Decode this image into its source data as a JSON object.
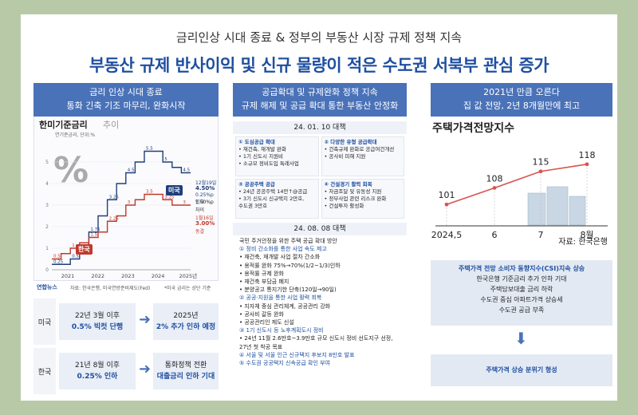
{
  "header": {
    "subtitle": "금리인상 시대 종료 & 정부의 부동산 시장 규제 정책 지속",
    "title": "부동산 규제 반사이익 및 신규 물량이 적은 수도권 서북부 관심 증가"
  },
  "col1": {
    "head_line1": "금리 인상 시대 종료",
    "head_line2": "통화 긴축 기조 마무리, 완화시작",
    "chart_title": "한미기준금리",
    "chart_title_suffix": "추이",
    "unit": "연기준금리, 단위:%",
    "percent_glyph": "%",
    "tag_us": "미국",
    "tag_kr": "한국",
    "us_note1": "12월19일",
    "us_note2": "4.50%",
    "us_note3": "0.25%p 인하",
    "us_note4": "1.50%p",
    "us_note5": "차이",
    "kr_note1": "1월16일",
    "kr_note2": "3.00%",
    "kr_note3": "동결",
    "source": "자료: 한국은행, 미국연방준비제도(Fed)",
    "source_note": "*미국 금리는 상단 기준",
    "logo": "연합뉴스",
    "rows": [
      {
        "label": "미국",
        "left1": "22년 3월 이후",
        "left2": "0.5% 빅컷 단행",
        "right1": "2025년",
        "right2": "2% 추가 인하 예정"
      },
      {
        "label": "한국",
        "left1": "21년 8월 이후",
        "left2": "0.25% 인하",
        "right1": "통화정책 전환",
        "right2": "대출금리 인하 기대"
      }
    ]
  },
  "chart_data": [
    {
      "type": "line",
      "title": "한미기준금리 추이",
      "ylabel": "연기준금리, 단위:%",
      "x_ticks": [
        "2021",
        "2022",
        "2023",
        "2024",
        "2025년"
      ],
      "ylim": [
        0,
        6
      ],
      "series": [
        {
          "name": "미국",
          "values": [
            0.25,
            0.25,
            0.5,
            1.0,
            1.75,
            2.5,
            3.25,
            4.0,
            4.5,
            5.0,
            5.5,
            5.5,
            5.0,
            4.75,
            4.5
          ]
        },
        {
          "name": "한국",
          "values": [
            0.5,
            0.75,
            1.0,
            1.25,
            1.5,
            1.75,
            2.25,
            2.5,
            3.0,
            3.25,
            3.5,
            3.5,
            3.25,
            3.0,
            3.0
          ]
        }
      ],
      "y_ticks": [
        0,
        1,
        2,
        3,
        4,
        5
      ]
    },
    {
      "type": "line",
      "title": "주택가격전망지수",
      "categories": [
        "2024,5",
        "6",
        "7",
        "8월"
      ],
      "values": [
        101,
        108,
        115,
        118
      ],
      "ylim": [
        95,
        122
      ]
    }
  ],
  "col2": {
    "head_line1": "공급확대 및 규제완화 정책 지속",
    "head_line2": "규제 해제 및 공급 확대 통한 부동산 안정화",
    "date1": "24. 01. 10 대책",
    "cells": [
      {
        "h": "① 도심공급 확대",
        "body": "• 재건축, 재개발 완화\n• 1기 신도시 지원비\n• 소규모 정비도입 특례사업"
      },
      {
        "h": "② 다양한 유형 공급확대",
        "body": "• 건축규제 완화로 공급여건개선\n• 공사비 피해 지원"
      },
      {
        "h": "③ 공공주택 공급",
        "body": "• 24년 공공주택 14만↑@공급\n• 3기 신도시 신규택지 2만호,\n  수도권 3만호"
      },
      {
        "h": "④ 건설경기 활력 회복",
        "body": "• 자금조달 및 유동성 지원\n• 정부사업 관련 리스크 완화\n• 건설투자 활성화"
      }
    ],
    "date2": "24. 08. 08 대책",
    "list": [
      {
        "h": false,
        "t": "국민 주거안정을 위한 주택 공급 확대 방안"
      },
      {
        "h": true,
        "t": "① 정비 간소화를 통한 사업 속도 제고"
      },
      {
        "h": false,
        "t": "  • 재건축, 재개발 사업 절차 간소화"
      },
      {
        "h": false,
        "t": "  • 용적률 완화 75%→70%(1/2~1/3)인하"
      },
      {
        "h": false,
        "t": "  • 용적률 규제 완화"
      },
      {
        "h": false,
        "t": "  • 재건축 부담금 폐지"
      },
      {
        "h": false,
        "t": "  • 분양공고 통지기한 단축(120일→90일)"
      },
      {
        "h": true,
        "t": "② 공공·지원을 통한 사업 활력 회복"
      },
      {
        "h": false,
        "t": "  • 지자체 중심 관리체계, 공공관리 강화"
      },
      {
        "h": false,
        "t": "  • 공사비 갈등 완화"
      },
      {
        "h": false,
        "t": "  • 공공관리인 제도 신설"
      },
      {
        "h": true,
        "t": "③ 1기 신도시 등 노후계획도시 정비"
      },
      {
        "h": false,
        "t": "  • 24년 11월 2.6만호~3.9만호 규모 신도시 정비 선도지구 선정,"
      },
      {
        "h": false,
        "t": "    27년 첫 착공 목표"
      },
      {
        "h": true,
        "t": "④ 서울 및 서울 인근 신규택지 후보지 8만호 발표"
      },
      {
        "h": true,
        "t": "⑤ 수도권 공공택지 신속공급 확인 부여"
      }
    ]
  },
  "col3": {
    "head_line1": "2021년 만큼 오른다",
    "head_line2": "집 값 전망, 2년 8개월만에 최고",
    "chart_title": "주택가격전망지수",
    "source": "자료: 한국은행",
    "box_lines": [
      {
        "h": true,
        "t": "주택가격 전망 소비자 동향지수(CSI)지속 상승"
      },
      {
        "h": false,
        "t": "한국은행 기준금리 추가 인하 기대"
      },
      {
        "h": false,
        "t": "주택담보대출 금리 하락"
      },
      {
        "h": false,
        "t": "수도권 중심 아파트가격 상승세"
      },
      {
        "h": false,
        "t": "수도권 공급 부족"
      }
    ],
    "result": "주택가격 상승 분위기 형성"
  },
  "colors": {
    "accent": "#1f4fa0",
    "header_bg": "#4a72b8",
    "kr_line": "#c0392b",
    "us_line": "#1f3f7a"
  }
}
